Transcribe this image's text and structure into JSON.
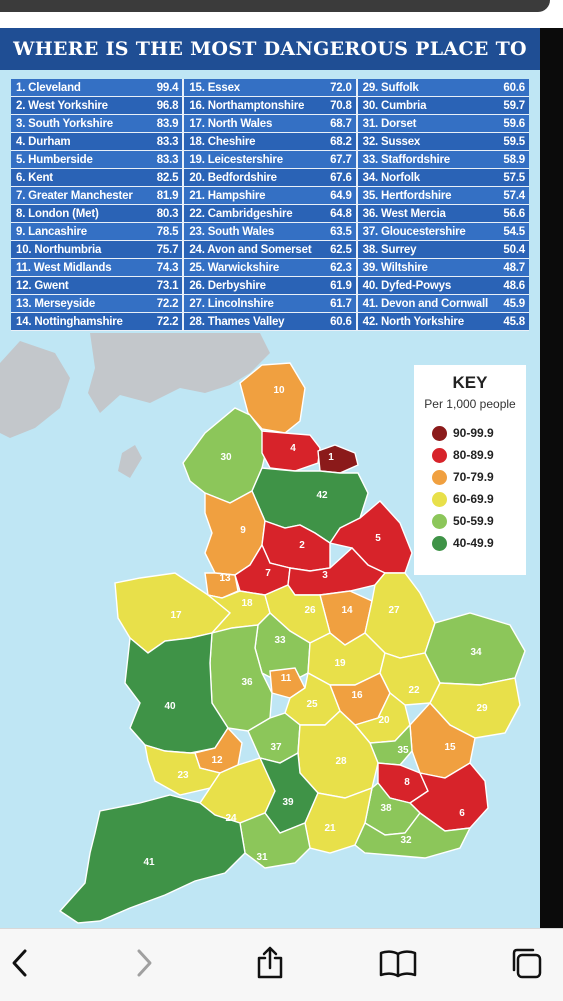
{
  "title": "WHERE IS THE MOST DANGEROUS PLACE TO LIVE?",
  "rankings": [
    [
      {
        "rank": "1.",
        "name": "Cleveland",
        "value": "99.4"
      },
      {
        "rank": "2.",
        "name": "West Yorkshire",
        "value": "96.8"
      },
      {
        "rank": "3.",
        "name": "South Yorkshire",
        "value": "83.9"
      },
      {
        "rank": "4.",
        "name": "Durham",
        "value": "83.3"
      },
      {
        "rank": "5.",
        "name": "Humberside",
        "value": "83.3"
      },
      {
        "rank": "6.",
        "name": "Kent",
        "value": "82.5"
      },
      {
        "rank": "7.",
        "name": "Greater Manchester",
        "value": "81.9"
      },
      {
        "rank": "8.",
        "name": "London (Met)",
        "value": "80.3"
      },
      {
        "rank": "9.",
        "name": "Lancashire",
        "value": "78.5"
      },
      {
        "rank": "10.",
        "name": "Northumbria",
        "value": "75.7"
      },
      {
        "rank": "11.",
        "name": "West Midlands",
        "value": "74.3"
      },
      {
        "rank": "12.",
        "name": "Gwent",
        "value": "73.1"
      },
      {
        "rank": "13.",
        "name": "Merseyside",
        "value": "72.2"
      },
      {
        "rank": "14.",
        "name": "Nottinghamshire",
        "value": "72.2"
      }
    ],
    [
      {
        "rank": "15.",
        "name": "Essex",
        "value": "72.0"
      },
      {
        "rank": "16.",
        "name": "Northamptonshire",
        "value": "70.8"
      },
      {
        "rank": "17.",
        "name": "North Wales",
        "value": "68.7"
      },
      {
        "rank": "18.",
        "name": "Cheshire",
        "value": "68.2"
      },
      {
        "rank": "19.",
        "name": "Leicestershire",
        "value": "67.7"
      },
      {
        "rank": "20.",
        "name": "Bedfordshire",
        "value": "67.6"
      },
      {
        "rank": "21.",
        "name": "Hampshire",
        "value": "64.9"
      },
      {
        "rank": "22.",
        "name": "Cambridgeshire",
        "value": "64.8"
      },
      {
        "rank": "23.",
        "name": "South Wales",
        "value": "63.5"
      },
      {
        "rank": "24.",
        "name": "Avon and Somerset",
        "value": "62.5"
      },
      {
        "rank": "25.",
        "name": "Warwickshire",
        "value": "62.3"
      },
      {
        "rank": "26.",
        "name": "Derbyshire",
        "value": "61.9"
      },
      {
        "rank": "27.",
        "name": "Lincolnshire",
        "value": "61.7"
      },
      {
        "rank": "28.",
        "name": "Thames Valley",
        "value": "60.6"
      }
    ],
    [
      {
        "rank": "29.",
        "name": "Suffolk",
        "value": "60.6"
      },
      {
        "rank": "30.",
        "name": "Cumbria",
        "value": "59.7"
      },
      {
        "rank": "31.",
        "name": "Dorset",
        "value": "59.6"
      },
      {
        "rank": "32.",
        "name": "Sussex",
        "value": "59.5"
      },
      {
        "rank": "33.",
        "name": "Staffordshire",
        "value": "58.9"
      },
      {
        "rank": "34.",
        "name": "Norfolk",
        "value": "57.5"
      },
      {
        "rank": "35.",
        "name": "Hertfordshire",
        "value": "57.4"
      },
      {
        "rank": "36.",
        "name": "West Mercia",
        "value": "56.6"
      },
      {
        "rank": "37.",
        "name": "Gloucestershire",
        "value": "54.5"
      },
      {
        "rank": "38.",
        "name": "Surrey",
        "value": "50.4"
      },
      {
        "rank": "39.",
        "name": "Wiltshire",
        "value": "48.7"
      },
      {
        "rank": "40.",
        "name": "Dyfed-Powys",
        "value": "48.6"
      },
      {
        "rank": "41.",
        "name": "Devon and Cornwall",
        "value": "45.9"
      },
      {
        "rank": "42.",
        "name": "North Yorkshire",
        "value": "45.8"
      }
    ]
  ],
  "key": {
    "title": "KEY",
    "subtitle": "Per 1,000 people",
    "items": [
      {
        "label": "90-99.9",
        "color": "#8b1a1a"
      },
      {
        "label": "80-89.9",
        "color": "#d7232a"
      },
      {
        "label": "70-79.9",
        "color": "#f0a040"
      },
      {
        "label": "60-69.9",
        "color": "#e8e04a"
      },
      {
        "label": "50-59.9",
        "color": "#8cc65a"
      },
      {
        "label": "40-49.9",
        "color": "#3f9347"
      }
    ]
  },
  "map_labels": [
    "1",
    "2",
    "3",
    "4",
    "5",
    "6",
    "7",
    "8",
    "9",
    "10",
    "11",
    "12",
    "13",
    "14",
    "15",
    "16",
    "17",
    "18",
    "19",
    "20",
    "21",
    "22",
    "23",
    "24",
    "25",
    "26",
    "27",
    "28",
    "29",
    "30",
    "31",
    "32",
    "33",
    "34",
    "35",
    "36",
    "37",
    "38",
    "39",
    "40",
    "41",
    "42"
  ],
  "browser_nav": {
    "back": "back-icon",
    "forward": "forward-icon",
    "share": "share-icon",
    "bookmarks": "book-icon",
    "tabs": "tabs-icon"
  }
}
